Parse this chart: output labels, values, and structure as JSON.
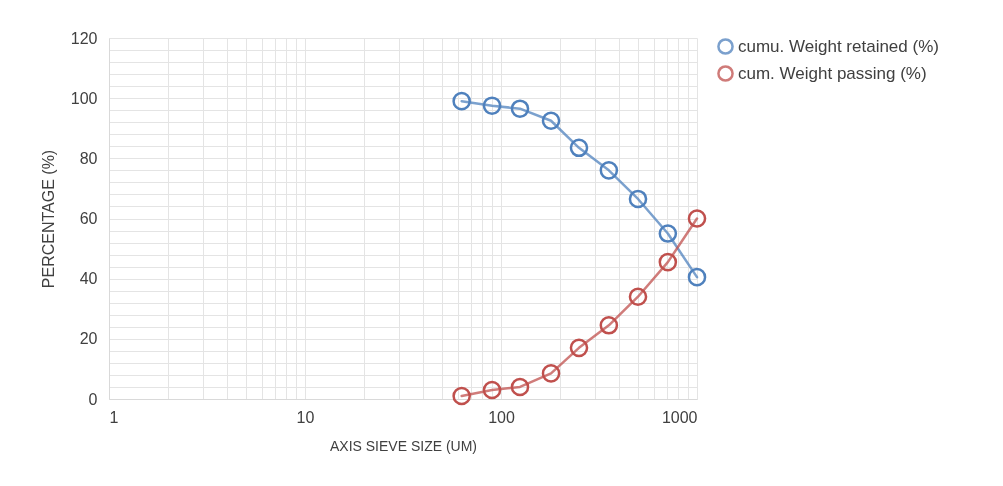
{
  "chart_data": {
    "type": "line",
    "xlabel": "AXIS SIEVE SIZE  (UM)",
    "ylabel": "PERCENTAGE (%)",
    "x": [
      63,
      90,
      125,
      180,
      250,
      355,
      500,
      710,
      1000
    ],
    "series": [
      {
        "name": "cumu. Weight retained (%)",
        "color": "#4f81bd",
        "values": [
          99,
          97.5,
          96.5,
          92.5,
          83.5,
          76,
          66.5,
          55,
          40.5
        ]
      },
      {
        "name": "cum. Weight passing (%)",
        "color": "#c0504d",
        "values": [
          1,
          3,
          4,
          8.5,
          17,
          24.5,
          34,
          45.5,
          60
        ]
      }
    ],
    "log": "x",
    "xlim": [
      1,
      1000
    ],
    "xticks": [
      1,
      {
        "value": 2,
        "label": null
      },
      {
        "value": 3,
        "label": null
      },
      {
        "value": 4,
        "label": null
      },
      {
        "value": 5,
        "label": null
      },
      {
        "value": 6,
        "label": null
      },
      {
        "value": 7,
        "label": null
      },
      {
        "value": 8,
        "label": null
      },
      {
        "value": 9,
        "label": null
      },
      10,
      {
        "value": 20,
        "label": null
      },
      {
        "value": 30,
        "label": null
      },
      {
        "value": 40,
        "label": null
      },
      {
        "value": 50,
        "label": null
      },
      {
        "value": 60,
        "label": null
      },
      {
        "value": 70,
        "label": null
      },
      {
        "value": 80,
        "label": null
      },
      {
        "value": 90,
        "label": null
      },
      100,
      {
        "value": 200,
        "label": null
      },
      {
        "value": 300,
        "label": null
      },
      {
        "value": 400,
        "label": null
      },
      {
        "value": 500,
        "label": null
      },
      {
        "value": 600,
        "label": null
      },
      {
        "value": 700,
        "label": null
      },
      {
        "value": 800,
        "label": null
      },
      {
        "value": 900,
        "label": null
      },
      1000
    ],
    "ylim": [
      0,
      120
    ],
    "yticks": [
      0,
      {
        "value": 4,
        "label": null
      },
      {
        "value": 8,
        "label": null
      },
      {
        "value": 12,
        "label": null
      },
      {
        "value": 16,
        "label": null
      },
      20,
      {
        "value": 24,
        "label": null
      },
      {
        "value": 28,
        "label": null
      },
      {
        "value": 32,
        "label": null
      },
      {
        "value": 36,
        "label": null
      },
      40,
      {
        "value": 44,
        "label": null
      },
      {
        "value": 48,
        "label": null
      },
      {
        "value": 52,
        "label": null
      },
      {
        "value": 56,
        "label": null
      },
      60,
      {
        "value": 64,
        "label": null
      },
      {
        "value": 68,
        "label": null
      },
      {
        "value": 72,
        "label": null
      },
      {
        "value": 76,
        "label": null
      },
      80,
      {
        "value": 84,
        "label": null
      },
      {
        "value": 88,
        "label": null
      },
      {
        "value": 92,
        "label": null
      },
      {
        "value": 96,
        "label": null
      },
      100,
      {
        "value": 104,
        "label": null
      },
      {
        "value": 108,
        "label": null
      },
      {
        "value": 112,
        "label": null
      },
      {
        "value": 116,
        "label": null
      },
      120
    ],
    "grid": true,
    "legend": "right",
    "marker": "circle",
    "line_style": "solid"
  }
}
